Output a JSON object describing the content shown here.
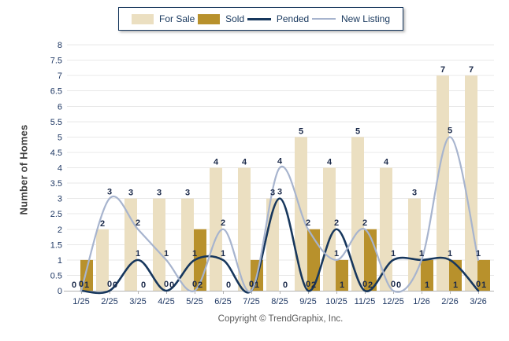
{
  "legend": {
    "items": [
      {
        "label": "For Sale",
        "type": "bar",
        "color": "#EBDFC1"
      },
      {
        "label": "Sold",
        "type": "bar",
        "color": "#B8912C"
      },
      {
        "label": "Pended",
        "type": "line",
        "color": "#17375D"
      },
      {
        "label": "New Listing",
        "type": "line",
        "color": "#A7B4CE"
      }
    ]
  },
  "axes": {
    "y_title": "Number of Homes"
  },
  "footer": {
    "copyright": "Copyright © TrendGraphix, Inc."
  },
  "colors": {
    "grid": "#E8E8E8",
    "axis": "#B3B3B3",
    "tick_label": "#1F3864",
    "data_label": "#1B2A4A",
    "background": "#FFFFFF"
  },
  "chart_data": {
    "type": "bar",
    "subtype": "combo bar+spline",
    "categories": [
      "1/25",
      "2/25",
      "3/25",
      "4/25",
      "5/25",
      "6/25",
      "7/25",
      "8/25",
      "9/25",
      "10/25",
      "11/25",
      "12/25",
      "1/26",
      "2/26",
      "3/26"
    ],
    "series": [
      {
        "name": "For Sale",
        "type": "bar",
        "color": "#EBDFC1",
        "values": [
          0,
          2,
          3,
          3,
          3,
          4,
          4,
          3,
          5,
          4,
          5,
          4,
          3,
          7,
          7
        ]
      },
      {
        "name": "Sold",
        "type": "bar",
        "color": "#B8912C",
        "values": [
          1,
          0,
          0,
          0,
          2,
          0,
          1,
          0,
          2,
          1,
          2,
          0,
          1,
          1,
          1
        ]
      },
      {
        "name": "Pended",
        "type": "line",
        "color": "#17375D",
        "values": [
          0,
          0,
          1,
          0,
          1,
          1,
          0,
          3,
          0,
          2,
          0,
          1,
          1,
          1,
          0
        ]
      },
      {
        "name": "New Listing",
        "type": "line",
        "color": "#A7B4CE",
        "values": [
          0,
          3,
          2,
          1,
          0,
          2,
          0,
          4,
          2,
          1,
          2,
          0,
          1,
          5,
          1
        ]
      }
    ],
    "xlabel": "",
    "ylabel": "Number of Homes",
    "ylim": [
      0,
      8
    ],
    "ytick_step": 0.5,
    "grid": true,
    "legend_position": "top",
    "data_labels": true
  }
}
